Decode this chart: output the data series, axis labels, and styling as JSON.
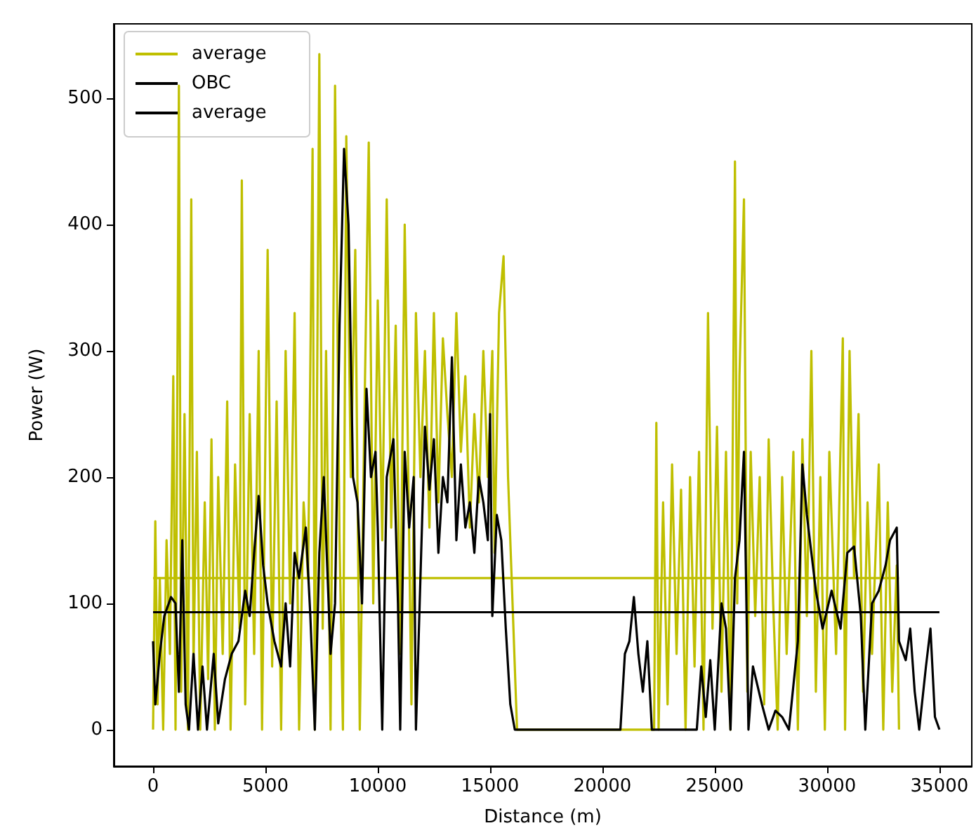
{
  "chart_data": {
    "type": "line",
    "xlabel": "Distance (m)",
    "ylabel": "Power (W)",
    "xlim": [
      -1750,
      36440
    ],
    "xticks": [
      0,
      5000,
      10000,
      15000,
      20000,
      25000,
      30000,
      35000
    ],
    "ylim": [
      -29,
      559
    ],
    "yticks": [
      0,
      100,
      200,
      300,
      400,
      500
    ],
    "grid": false,
    "legend": "top left",
    "marker": "none",
    "line_style": "solid",
    "series": [
      {
        "color": "#bfbf00",
        "x": [
          0,
          100,
          200,
          300,
          450,
          600,
          750,
          900,
          1000,
          1150,
          1250,
          1400,
          1550,
          1700,
          1800,
          1950,
          2100,
          2300,
          2450,
          2600,
          2750,
          2900,
          3100,
          3300,
          3450,
          3650,
          3850,
          3950,
          4100,
          4300,
          4500,
          4700,
          4850,
          5100,
          5300,
          5500,
          5700,
          5900,
          6100,
          6300,
          6500,
          6700,
          6900,
          7100,
          7200,
          7400,
          7550,
          7700,
          7900,
          8100,
          8300,
          8450,
          8600,
          8800,
          9000,
          9200,
          9400,
          9600,
          9800,
          10000,
          10200,
          10400,
          10600,
          10800,
          11000,
          11200,
          11400,
          11500,
          11700,
          11900,
          12100,
          12300,
          12500,
          12700,
          12900,
          13100,
          13300,
          13500,
          13700,
          13900,
          14100,
          14300,
          14500,
          14700,
          14900,
          15100,
          15200,
          15400,
          15600,
          15800,
          16000,
          16200,
          22300,
          22400,
          22500,
          22700,
          22900,
          23100,
          23300,
          23500,
          23700,
          23900,
          24100,
          24300,
          24500,
          24700,
          24900,
          25100,
          25300,
          25500,
          25700,
          25900,
          26000,
          26100,
          26300,
          26450,
          26600,
          26800,
          27000,
          27200,
          27400,
          27600,
          27800,
          28000,
          28200,
          28500,
          28700,
          28900,
          29100,
          29300,
          29500,
          29700,
          29900,
          30100,
          30400,
          30700,
          30800,
          31000,
          31200,
          31400,
          31600,
          31800,
          32000,
          32300,
          32500,
          32700,
          32900,
          33100,
          33200
        ],
        "values": [
          0,
          165,
          20,
          120,
          0,
          150,
          60,
          280,
          0,
          510,
          30,
          250,
          0,
          420,
          50,
          220,
          0,
          180,
          40,
          230,
          0,
          200,
          60,
          260,
          0,
          210,
          80,
          435,
          20,
          250,
          60,
          300,
          0,
          380,
          50,
          260,
          0,
          300,
          100,
          330,
          0,
          180,
          120,
          460,
          0,
          535,
          80,
          300,
          0,
          510,
          150,
          0,
          470,
          200,
          380,
          0,
          240,
          465,
          100,
          340,
          150,
          420,
          160,
          320,
          60,
          400,
          150,
          20,
          330,
          200,
          300,
          160,
          330,
          180,
          310,
          250,
          200,
          330,
          220,
          280,
          160,
          250,
          180,
          300,
          200,
          300,
          140,
          330,
          375,
          200,
          100,
          0,
          0,
          243,
          0,
          180,
          20,
          210,
          60,
          190,
          0,
          200,
          50,
          220,
          0,
          330,
          80,
          240,
          30,
          220,
          0,
          450,
          100,
          280,
          420,
          30,
          220,
          90,
          200,
          20,
          230,
          100,
          0,
          200,
          60,
          220,
          0,
          230,
          90,
          300,
          30,
          200,
          0,
          220,
          60,
          310,
          0,
          300,
          120,
          250,
          30,
          180,
          60,
          210,
          0,
          180,
          30,
          130,
          0
        ]
      },
      {
        "name": "average",
        "color": "#bfbf00",
        "x": [
          0,
          33200
        ],
        "values": [
          120,
          120
        ]
      },
      {
        "name": "OBC",
        "color": "#000000",
        "x": [
          0,
          100,
          300,
          500,
          800,
          1000,
          1150,
          1300,
          1450,
          1600,
          1800,
          2000,
          2200,
          2400,
          2700,
          2900,
          3200,
          3500,
          3800,
          4100,
          4300,
          4500,
          4700,
          4900,
          5100,
          5400,
          5700,
          5900,
          6100,
          6300,
          6500,
          6800,
          7000,
          7200,
          7400,
          7600,
          7900,
          8100,
          8300,
          8500,
          8700,
          8900,
          9100,
          9300,
          9500,
          9700,
          9900,
          10000,
          10200,
          10400,
          10700,
          10900,
          11000,
          11200,
          11400,
          11600,
          11700,
          11900,
          12100,
          12300,
          12500,
          12700,
          12900,
          13100,
          13300,
          13500,
          13700,
          13900,
          14100,
          14300,
          14500,
          14700,
          14900,
          15000,
          15100,
          15300,
          15500,
          15700,
          15900,
          16100,
          20800,
          21000,
          21200,
          21400,
          21600,
          21800,
          22000,
          22200,
          24200,
          24400,
          24600,
          24800,
          25000,
          25300,
          25500,
          25700,
          25900,
          26100,
          26300,
          26500,
          26700,
          27100,
          27400,
          27700,
          28000,
          28300,
          28700,
          28900,
          29100,
          29300,
          29500,
          29800,
          30200,
          30600,
          30900,
          31200,
          31500,
          31700,
          32000,
          32300,
          32600,
          32800,
          33100,
          33200,
          33500,
          33700,
          33900,
          34100,
          34400,
          34600,
          34800,
          35000
        ],
        "values": [
          70,
          20,
          60,
          90,
          105,
          100,
          30,
          150,
          20,
          0,
          60,
          0,
          50,
          0,
          60,
          5,
          40,
          60,
          70,
          110,
          90,
          140,
          185,
          130,
          100,
          70,
          50,
          100,
          50,
          140,
          120,
          160,
          90,
          0,
          140,
          200,
          60,
          100,
          320,
          460,
          400,
          200,
          180,
          100,
          270,
          200,
          220,
          160,
          0,
          200,
          230,
          100,
          0,
          220,
          160,
          200,
          0,
          120,
          240,
          190,
          230,
          140,
          200,
          180,
          295,
          150,
          210,
          160,
          180,
          140,
          200,
          180,
          150,
          250,
          90,
          170,
          150,
          80,
          20,
          0,
          0,
          60,
          70,
          105,
          60,
          30,
          70,
          0,
          0,
          50,
          10,
          55,
          0,
          100,
          80,
          0,
          120,
          150,
          220,
          0,
          50,
          20,
          0,
          15,
          10,
          0,
          70,
          210,
          170,
          140,
          110,
          80,
          110,
          80,
          140,
          145,
          90,
          0,
          100,
          110,
          130,
          150,
          160,
          70,
          55,
          80,
          30,
          0,
          50,
          80,
          10,
          0
        ]
      },
      {
        "name": "average",
        "color": "#000000",
        "x": [
          0,
          35000
        ],
        "values": [
          93,
          93
        ]
      }
    ]
  }
}
